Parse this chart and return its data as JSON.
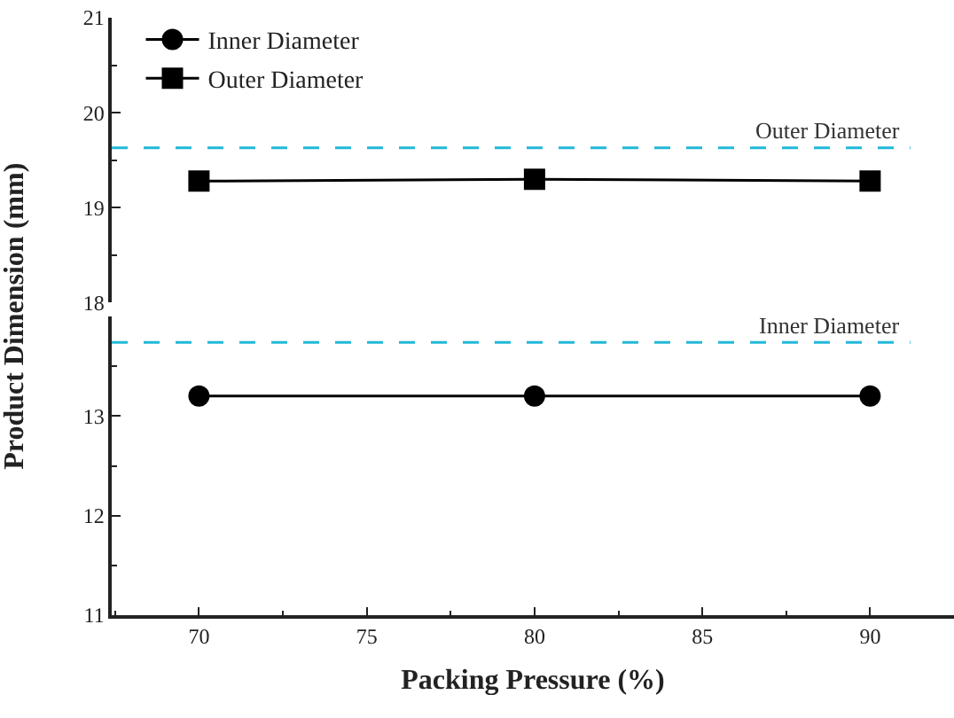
{
  "chart_data": [
    {
      "type": "line",
      "x": [
        70,
        80,
        90
      ],
      "series": [
        {
          "name": "Outer Diameter",
          "color": "#000000",
          "values": [
            19.28,
            19.3,
            19.28
          ],
          "marker": "square"
        }
      ],
      "ylim": [
        18,
        21
      ],
      "yticks": [
        18,
        19,
        20,
        21
      ],
      "tick_labels": "y",
      "ref_lines": [
        {
          "axis": "y",
          "value": 19.63,
          "label": "Outer Diameter",
          "color": "#22b8d8",
          "line_style": "dashed"
        }
      ],
      "legend": "top left",
      "line_style": "solid"
    },
    {
      "type": "line",
      "xlabel": "Packing Pressure (%)",
      "ylabel": "Product Dimension (mm)",
      "x": [
        70,
        80,
        90
      ],
      "series": [
        {
          "name": "Inner Diameter",
          "color": "#000000",
          "values": [
            13.2,
            13.2,
            13.2
          ],
          "marker": "circle"
        }
      ],
      "xlim": [
        67.4,
        92.5
      ],
      "xticks": [
        70,
        75,
        80,
        85,
        90
      ],
      "ylim": [
        11,
        14
      ],
      "yticks": [
        11,
        12,
        13
      ],
      "ref_lines": [
        {
          "axis": "y",
          "value": 13.74,
          "label": "Inner Diameter",
          "color": "#22b8d8",
          "line_style": "dashed"
        }
      ],
      "legend": "top left",
      "line_style": "solid"
    }
  ]
}
